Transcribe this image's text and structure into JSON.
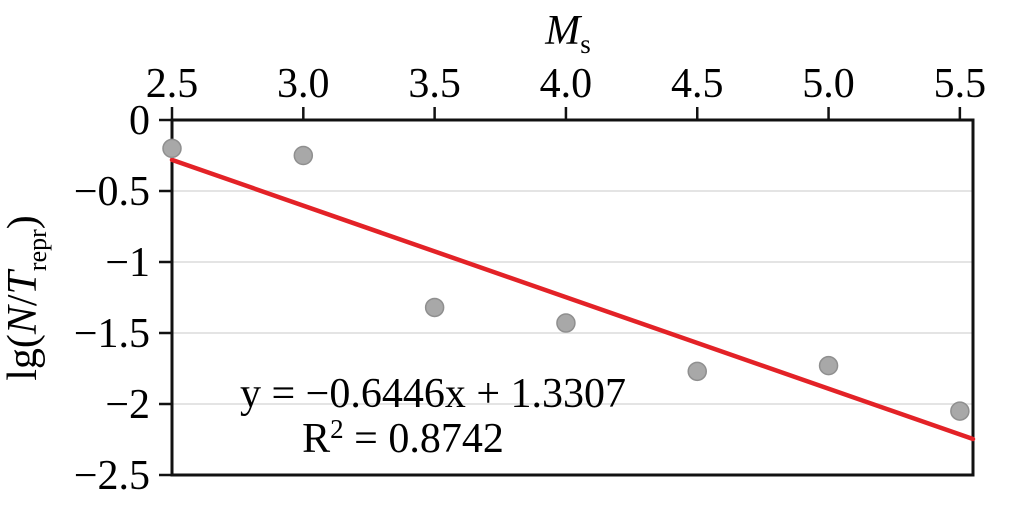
{
  "chart_data": {
    "type": "scatter",
    "title": "",
    "x_axis": {
      "label": {
        "text": "M",
        "subscript": "s"
      },
      "position": "top",
      "range": [
        2.5,
        5.55
      ],
      "ticks": [
        2.5,
        3.0,
        3.5,
        4.0,
        4.5,
        5.0,
        5.5
      ],
      "tick_labels": [
        "2.5",
        "3.0",
        "3.5",
        "4.0",
        "4.5",
        "5.0",
        "5.5"
      ]
    },
    "y_axis": {
      "label": {
        "prefix": "lg(",
        "var1": "N",
        "divider": "/",
        "var2": "T",
        "subscript": "repr",
        "suffix": ")"
      },
      "range": [
        -2.5,
        0
      ],
      "ticks": [
        0,
        -0.5,
        -1,
        -1.5,
        -2,
        -2.5
      ],
      "tick_labels": [
        "0",
        "−0.5",
        "−1",
        "−1.5",
        "−2",
        "−2.5"
      ],
      "gridlines": [
        -0.5,
        -1,
        -1.5,
        -2
      ]
    },
    "points": [
      {
        "x": 2.5,
        "y": -0.2
      },
      {
        "x": 3.0,
        "y": -0.25
      },
      {
        "x": 3.5,
        "y": -1.32
      },
      {
        "x": 4.0,
        "y": -1.43
      },
      {
        "x": 4.5,
        "y": -1.77
      },
      {
        "x": 5.0,
        "y": -1.73
      },
      {
        "x": 5.5,
        "y": -2.05
      }
    ],
    "trendline": {
      "slope": -0.6446,
      "intercept": 1.3307,
      "color": "#e32227"
    },
    "annotation": {
      "equation": "y = −0.6446x + 1.3307",
      "r_squared": {
        "base": "R",
        "superscript": "2",
        "value": " = 0.8742"
      }
    },
    "colors": {
      "point_fill": "#a8a8a8",
      "point_stroke": "#8f8f8f",
      "gridline": "#e4e4e4",
      "axis": "#111111",
      "trend": "#e32227"
    },
    "legend": {
      "visible": false
    }
  }
}
